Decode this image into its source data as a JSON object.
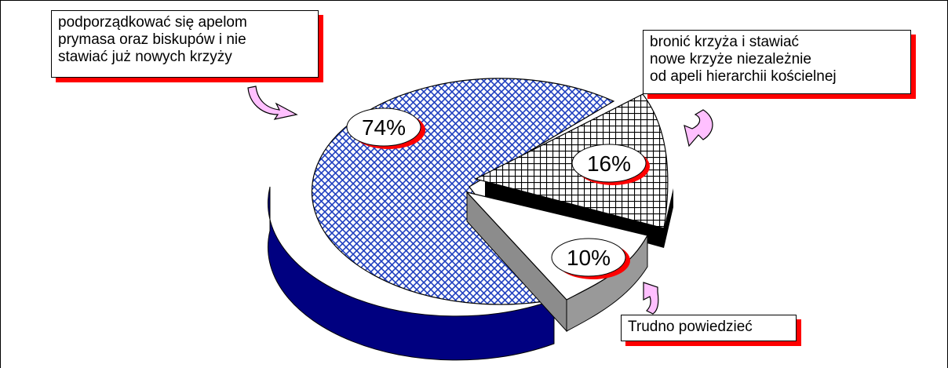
{
  "chart_data": {
    "type": "pie",
    "title": "",
    "slices": [
      {
        "label_lines": [
          "podporządkować się apelom",
          "prymasa oraz biskupów i nie",
          "stawiać już nowych krzyży"
        ],
        "value": 74,
        "value_label": "74%",
        "fill": "#1f3fbf",
        "pattern": "diagonal-crosshatch",
        "side_color": "#000080"
      },
      {
        "label_lines": [
          "bronić krzyża i stawiać",
          "nowe krzyże niezależnie",
          "od apeli hierarchii kościelnej"
        ],
        "value": 16,
        "value_label": "16%",
        "fill": "#000000",
        "pattern": "square-crosshatch",
        "side_color": "#000000"
      },
      {
        "label_lines": [
          "Trudno powiedzieć"
        ],
        "value": 10,
        "value_label": "10%",
        "fill": "#ffffff",
        "pattern": "none",
        "side_color": "#999999"
      }
    ],
    "style": "3d-exploded",
    "callout_shadow_color": "#ff0000",
    "arrow_color": "#ffc0ff"
  }
}
